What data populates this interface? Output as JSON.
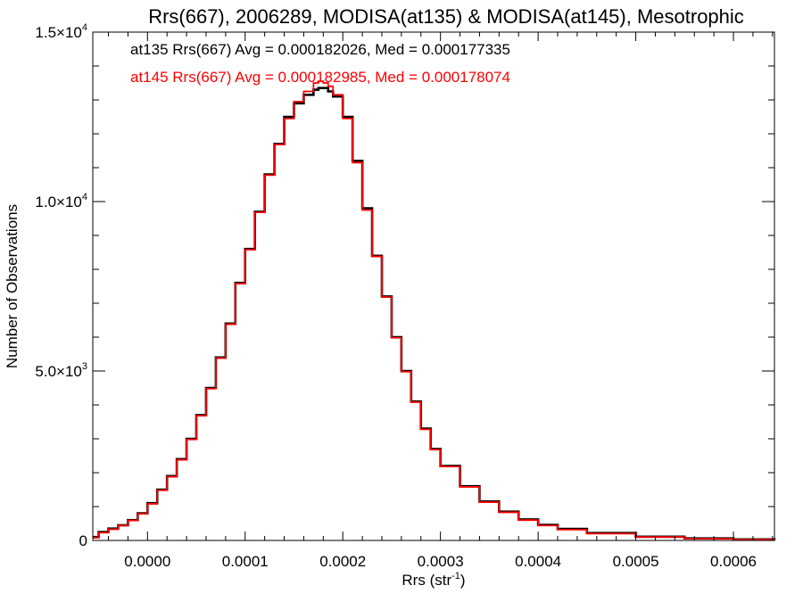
{
  "chart_data": {
    "type": "histogram",
    "title": "Rrs(667), 2006289, MODISA(at135) & MODISA(at145), Mesotrophic",
    "xlabel": "Rrs (str",
    "xlabel_sup": "-1",
    "xlabel_close": ")",
    "ylabel": "Number of Observations",
    "xlim": [
      -5.6e-05,
      0.000642
    ],
    "ylim": [
      0,
      15000
    ],
    "xticks": [
      0.0,
      0.0001,
      0.0002,
      0.0003,
      0.0004,
      0.0005,
      0.0006
    ],
    "xtick_labels": [
      "0.0000",
      "0.0001",
      "0.0002",
      "0.0003",
      "0.0004",
      "0.0005",
      "0.0006"
    ],
    "yticks": [
      {
        "value": 0,
        "base": "0",
        "exp": ""
      },
      {
        "value": 5000,
        "base": "5.0×10",
        "exp": "3"
      },
      {
        "value": 10000,
        "base": "1.0×10",
        "exp": "4"
      },
      {
        "value": 15000,
        "base": "1.5×10",
        "exp": "4"
      }
    ],
    "x": [
      -5.6e-05,
      -5e-05,
      -4e-05,
      -3e-05,
      -2e-05,
      -1e-05,
      0.0,
      1e-05,
      2e-05,
      3e-05,
      4e-05,
      5e-05,
      6e-05,
      7e-05,
      8e-05,
      9e-05,
      0.0001,
      0.00011,
      0.00012,
      0.00013,
      0.00014,
      0.00015,
      0.00016,
      0.00017,
      0.000175,
      0.00018,
      0.000185,
      0.00019,
      0.0002,
      0.00021,
      0.00022,
      0.00023,
      0.00024,
      0.00025,
      0.00026,
      0.00027,
      0.00028,
      0.00029,
      0.0003,
      0.00032,
      0.00034,
      0.00036,
      0.00038,
      0.0004,
      0.00042,
      0.00045,
      0.0005,
      0.00055,
      0.0006,
      0.000642
    ],
    "series": [
      {
        "name": "at135",
        "color": "#000000",
        "values": [
          100,
          250,
          350,
          450,
          600,
          800,
          1100,
          1500,
          1900,
          2400,
          3000,
          3700,
          4500,
          5400,
          6400,
          7600,
          8600,
          9700,
          10800,
          11700,
          12500,
          12900,
          13150,
          13300,
          13350,
          13350,
          13250,
          13100,
          12500,
          11200,
          9800,
          8400,
          7200,
          6000,
          5000,
          4100,
          3300,
          2700,
          2200,
          1600,
          1150,
          850,
          620,
          460,
          340,
          220,
          110,
          60,
          30,
          15
        ]
      },
      {
        "name": "at145",
        "color": "#ff0000",
        "values": [
          80,
          230,
          330,
          440,
          590,
          790,
          1080,
          1480,
          1880,
          2380,
          2980,
          3680,
          4480,
          5380,
          6380,
          7580,
          8580,
          9680,
          10780,
          11680,
          12450,
          12950,
          13250,
          13500,
          13550,
          13500,
          13400,
          13150,
          12450,
          11150,
          9750,
          8380,
          7180,
          5980,
          4980,
          4080,
          3280,
          2680,
          2180,
          1580,
          1130,
          830,
          600,
          440,
          320,
          200,
          100,
          50,
          25,
          10
        ]
      }
    ],
    "annotations": [
      {
        "text": "at135 Rrs(667) Avg = 0.000182026, Med = 0.000177335",
        "color": "#000000"
      },
      {
        "text": "at145 Rrs(667) Avg = 0.000182985, Med = 0.000178074",
        "color": "#ff0000"
      }
    ],
    "grid": false,
    "legend": "top-left"
  }
}
